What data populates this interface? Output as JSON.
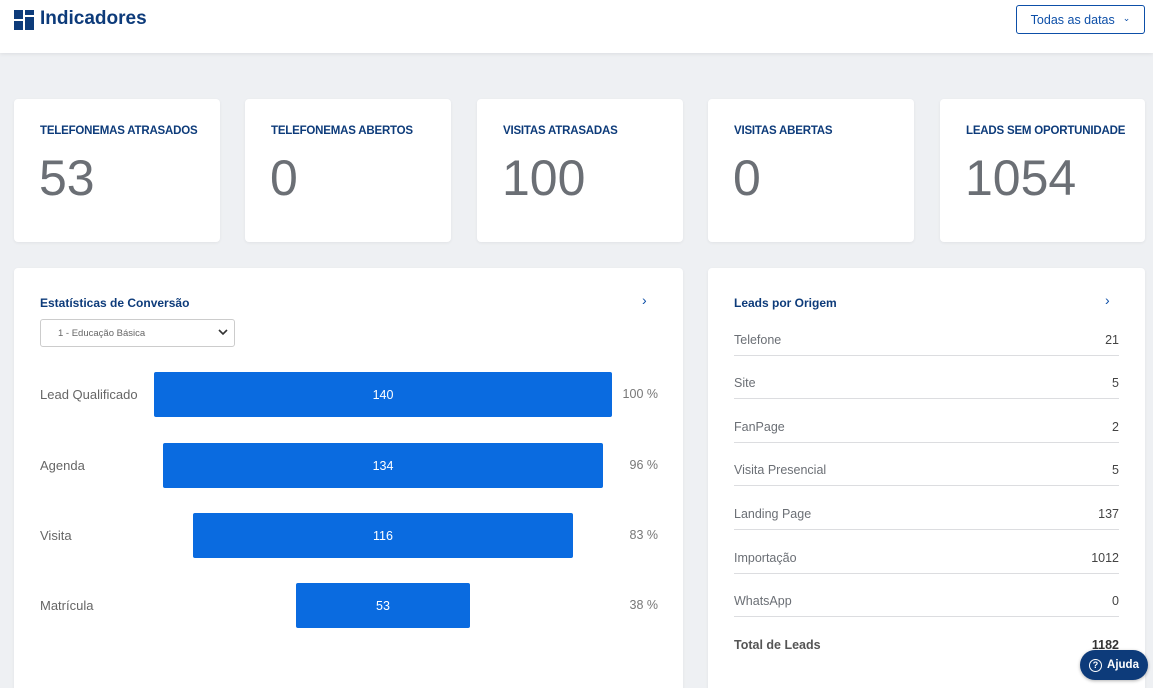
{
  "header": {
    "title": "Indicadores",
    "date_filter": "Todas as datas"
  },
  "kpis": [
    {
      "label": "TELEFONEMAS ATRASADOS",
      "value": "53"
    },
    {
      "label": "TELEFONEMAS ABERTOS",
      "value": "0"
    },
    {
      "label": "VISITAS ATRASADAS",
      "value": "100"
    },
    {
      "label": "VISITAS ABERTAS",
      "value": "0"
    },
    {
      "label": "LEADS SEM OPORTUNIDADE",
      "value": "1054"
    }
  ],
  "conversion": {
    "title": "Estatísticas de Conversão",
    "select_value": "1 - Educação Básica",
    "stages": [
      {
        "label": "Lead Qualificado",
        "value": "140",
        "percent": "100 %"
      },
      {
        "label": "Agenda",
        "value": "134",
        "percent": "96 %"
      },
      {
        "label": "Visita",
        "value": "116",
        "percent": "83 %"
      },
      {
        "label": "Matrícula",
        "value": "53",
        "percent": "38 %"
      }
    ]
  },
  "leads_origin": {
    "title": "Leads por Origem",
    "rows": [
      {
        "name": "Telefone",
        "value": "21"
      },
      {
        "name": "Site",
        "value": "5"
      },
      {
        "name": "FanPage",
        "value": "2"
      },
      {
        "name": "Visita Presencial",
        "value": "5"
      },
      {
        "name": "Landing Page",
        "value": "137"
      },
      {
        "name": "Importação",
        "value": "1012"
      },
      {
        "name": "WhatsApp",
        "value": "0"
      }
    ],
    "total_label": "Total de Leads",
    "total_value": "1182"
  },
  "help": {
    "label": "Ajuda"
  },
  "colors": {
    "brand": "#0d3b7a",
    "accent": "#0a6be0",
    "background": "#eef0f3"
  }
}
